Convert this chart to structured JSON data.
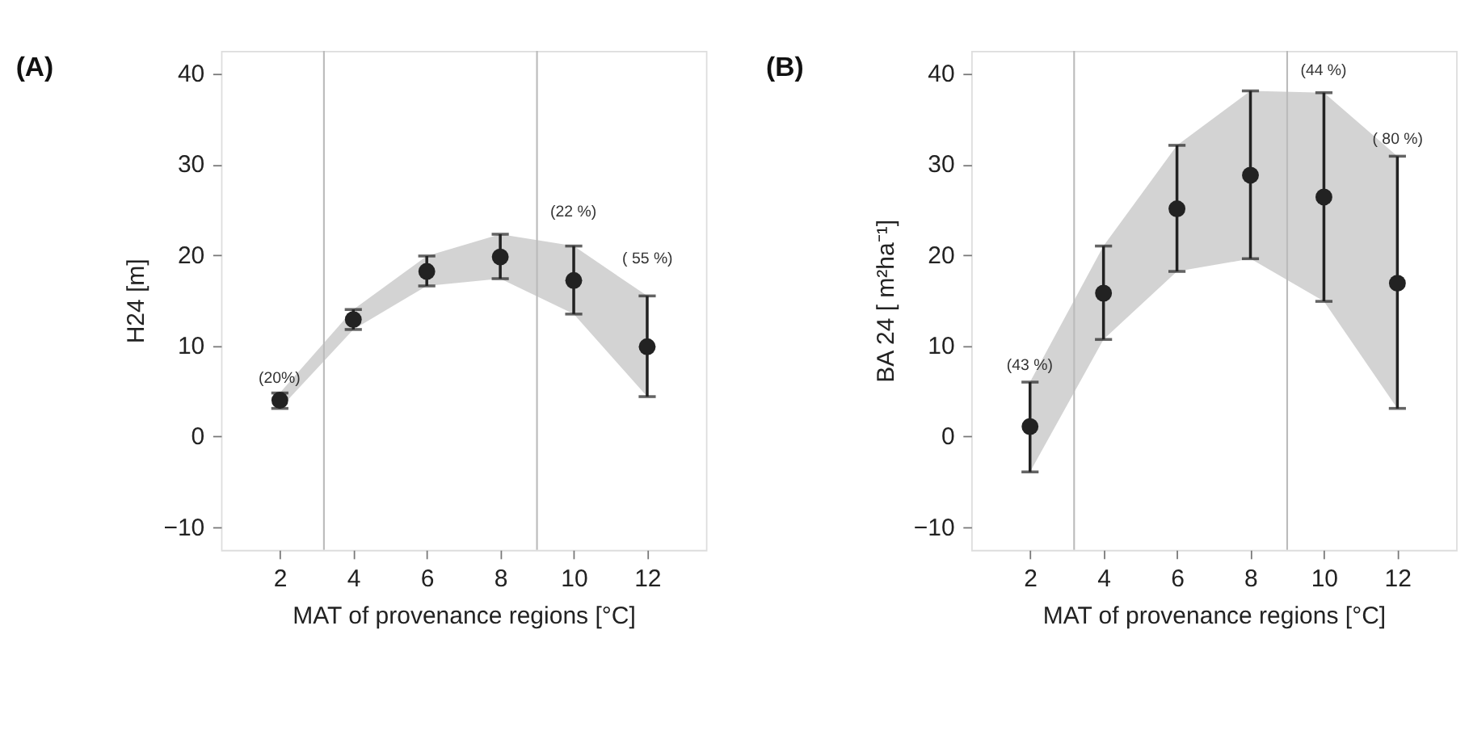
{
  "chart_data": [
    {
      "type": "scatter",
      "title": "(A)",
      "xlabel": "MAT of provenance regions [°C]",
      "ylabel": "H24 [m]",
      "x": [
        2,
        4,
        6,
        8,
        10,
        12
      ],
      "xlim": [
        0.4,
        13.6
      ],
      "xticks": [
        2,
        4,
        6,
        8,
        10,
        12
      ],
      "ylim": [
        -12.5,
        42.5
      ],
      "yticks": [
        -10,
        0,
        10,
        20,
        30,
        40
      ],
      "grid": false,
      "marker": "circle",
      "series": [
        {
          "color": "#222222",
          "values": [
            4.0,
            12.9,
            18.2,
            19.8,
            17.2,
            9.9
          ],
          "errors": [
            [
              3.1,
              4.8
            ],
            [
              11.8,
              14.0
            ],
            [
              16.6,
              19.9
            ],
            [
              17.4,
              22.3
            ],
            [
              13.5,
              21.0
            ],
            [
              4.4,
              15.5
            ]
          ],
          "lower": [
            3.1,
            11.8,
            16.6,
            17.4,
            13.5,
            4.4
          ],
          "upper": [
            4.8,
            14.0,
            19.9,
            22.3,
            21.0,
            15.5
          ]
        }
      ],
      "ref_lines": [
        {
          "axis": "x",
          "value": 3.2,
          "color": "#bbbbbb"
        },
        {
          "axis": "x",
          "value": 9.0,
          "color": "#bbbbbb"
        }
      ],
      "annotations": [
        "(20%)",
        "(22 %)",
        "( 55 %)"
      ]
    },
    {
      "type": "scatter",
      "title": "(B)",
      "xlabel": "MAT of provenance regions [°C]",
      "ylabel": "BA 24 [ m²ha⁻¹]",
      "x": [
        2,
        4,
        6,
        8,
        10,
        12
      ],
      "xlim": [
        0.4,
        13.6
      ],
      "xticks": [
        2,
        4,
        6,
        8,
        10,
        12
      ],
      "ylim": [
        -12.5,
        42.5
      ],
      "yticks": [
        -10,
        0,
        10,
        20,
        30,
        40
      ],
      "grid": false,
      "marker": "circle",
      "series": [
        {
          "color": "#222222",
          "values": [
            1.1,
            15.8,
            25.1,
            28.8,
            26.4,
            16.9
          ],
          "errors": [
            [
              -3.9,
              6.0
            ],
            [
              10.7,
              21.0
            ],
            [
              18.2,
              32.1
            ],
            [
              19.6,
              38.1
            ],
            [
              14.9,
              37.9
            ],
            [
              3.1,
              30.9
            ]
          ],
          "lower": [
            -3.9,
            10.7,
            18.2,
            19.6,
            14.9,
            3.1
          ],
          "upper": [
            6.0,
            21.0,
            32.1,
            38.1,
            37.9,
            30.9
          ]
        }
      ],
      "ref_lines": [
        {
          "axis": "x",
          "value": 3.2,
          "color": "#bbbbbb"
        },
        {
          "axis": "x",
          "value": 9.0,
          "color": "#bbbbbb"
        }
      ],
      "annotations": [
        "(43 %)",
        "(44 %)",
        "( 80 %)"
      ]
    }
  ]
}
